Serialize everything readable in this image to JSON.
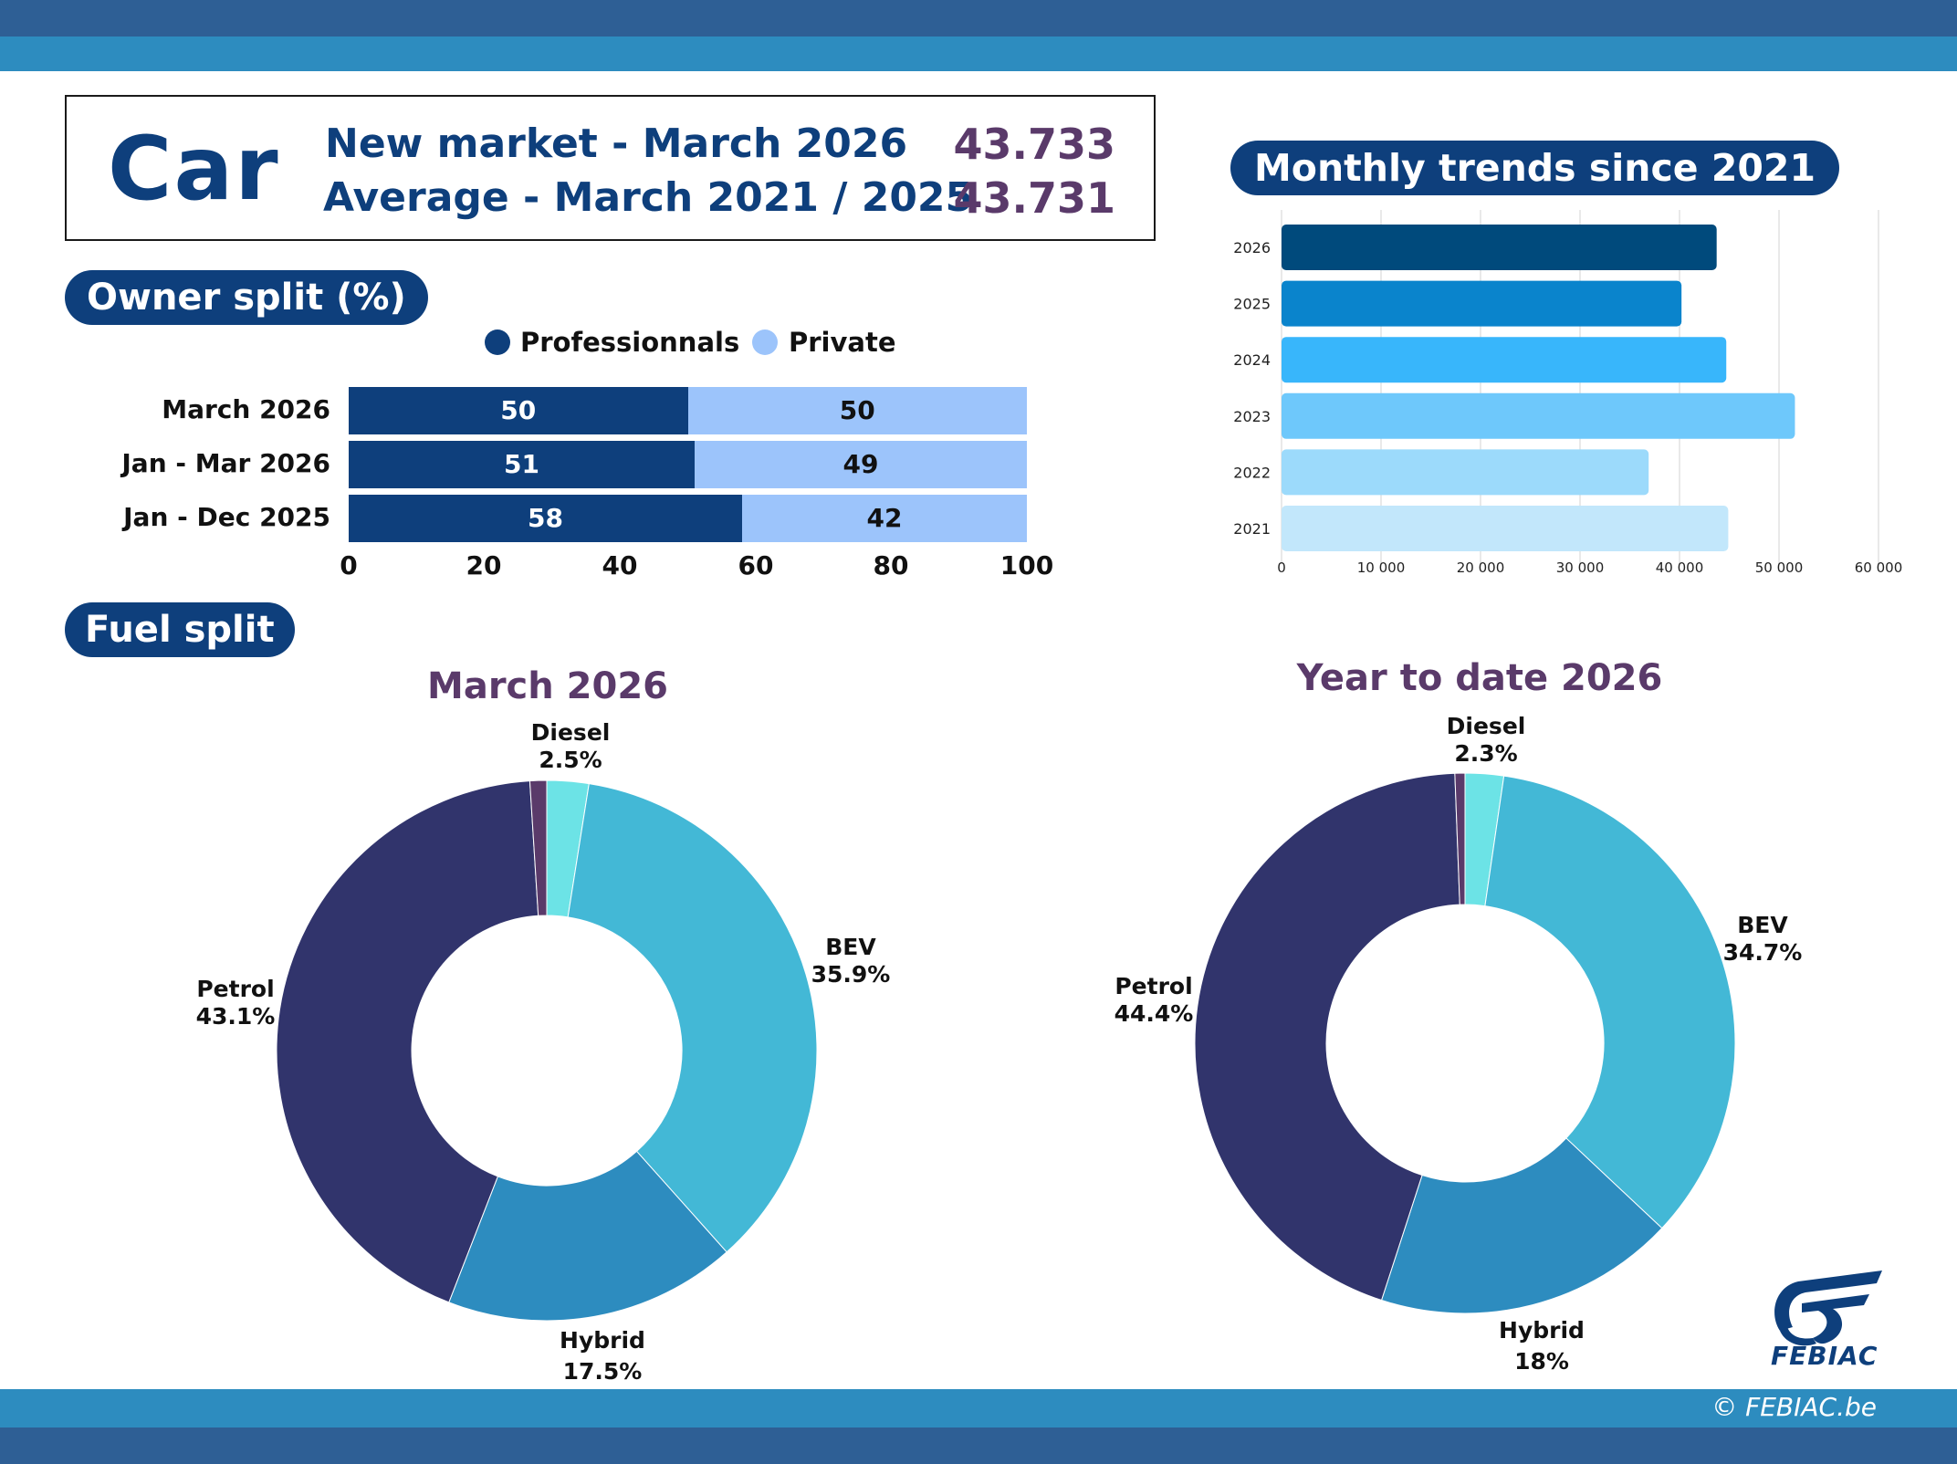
{
  "header": {
    "vehicle": "Car",
    "line1_label": "New market - March 2026",
    "line1_value": "43.733",
    "line2_label": "Average - March 2021 / 2025",
    "line2_value": "43.731"
  },
  "owner_split": {
    "title": "Owner split (%)",
    "legend": [
      "Professionnals",
      "Private"
    ],
    "rows": [
      "March 2026",
      "Jan - Mar 2026",
      "Jan - Dec 2025"
    ],
    "pro": [
      50,
      51,
      58
    ],
    "priv": [
      50,
      49,
      42
    ],
    "ticks": [
      "0",
      "20",
      "40",
      "60",
      "80",
      "100"
    ]
  },
  "trends": {
    "title": "Monthly trends since 2021",
    "years": [
      "2026",
      "2025",
      "2024",
      "2023",
      "2022",
      "2021"
    ],
    "ticks": [
      "0",
      "10 000",
      "20 000",
      "30 000",
      "40 000",
      "50 000",
      "60 000"
    ]
  },
  "fuel": {
    "title": "Fuel split",
    "march_title": "March 2026",
    "ytd_title": "Year to date 2026",
    "march": {
      "diesel_name": "Diesel",
      "diesel_pct": "2.5%",
      "bev_name": "BEV",
      "bev_pct": "35.9%",
      "hybrid_name": "Hybrid",
      "hybrid_pct": "17.5%",
      "petrol_name": "Petrol",
      "petrol_pct": "43.1%"
    },
    "ytd": {
      "diesel_name": "Diesel",
      "diesel_pct": "2.3%",
      "bev_name": "BEV",
      "bev_pct": "34.7%",
      "hybrid_name": "Hybrid",
      "hybrid_pct": "18%",
      "petrol_name": "Petrol",
      "petrol_pct": "44.4%"
    }
  },
  "brand": {
    "logo_text": "FEBIAC",
    "copyright": "© FEBIAC.be"
  },
  "colors": {
    "navy": "#0e3f7c",
    "light_blue": "#9cc4fb",
    "diesel": "#6ce3e6",
    "bev": "#43b8d6",
    "hybrid": "#2d8cbf",
    "petrol": "#31346c",
    "other": "#5a3a6a",
    "band_dark": "#2e5f95",
    "band_light": "#2d8cbf"
  },
  "chart_data": [
    {
      "type": "bar",
      "orientation": "horizontal",
      "stacked": true,
      "title": "Owner split (%)",
      "categories": [
        "March 2026",
        "Jan - Mar 2026",
        "Jan - Dec 2025"
      ],
      "series": [
        {
          "name": "Professionnals",
          "values": [
            50,
            51,
            58
          ]
        },
        {
          "name": "Private",
          "values": [
            50,
            49,
            42
          ]
        }
      ],
      "xlim": [
        0,
        100
      ],
      "legend": "top"
    },
    {
      "type": "bar",
      "orientation": "horizontal",
      "title": "Monthly trends since 2021",
      "categories": [
        "2026",
        "2025",
        "2024",
        "2023",
        "2022",
        "2021"
      ],
      "values": [
        43733,
        40200,
        44700,
        51600,
        36900,
        44900
      ],
      "xlim": [
        0,
        60000
      ],
      "grid": true
    },
    {
      "type": "pie",
      "donut": true,
      "title": "March 2026",
      "labels": [
        "Diesel",
        "BEV",
        "Hybrid",
        "Petrol",
        "Other"
      ],
      "values": [
        2.5,
        35.9,
        17.5,
        43.1,
        1.0
      ]
    },
    {
      "type": "pie",
      "donut": true,
      "title": "Year to date 2026",
      "labels": [
        "Diesel",
        "BEV",
        "Hybrid",
        "Petrol",
        "Other"
      ],
      "values": [
        2.3,
        34.7,
        18.0,
        44.4,
        0.6
      ]
    }
  ]
}
